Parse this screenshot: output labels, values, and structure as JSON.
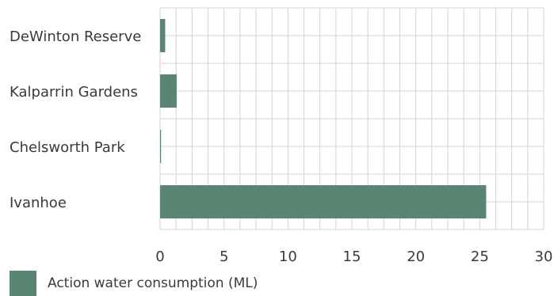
{
  "chart_data": {
    "type": "bar",
    "orientation": "horizontal",
    "categories": [
      "DeWinton Reserve",
      "Kalparrin Gardens",
      "Chelsworth Park",
      "Ivanhoe"
    ],
    "series": [
      {
        "name": "Action water consumption (ML)",
        "values": [
          0.4,
          1.3,
          0.05,
          25.5
        ]
      }
    ],
    "xlim": [
      0,
      30
    ],
    "x_ticks": [
      0,
      5,
      10,
      15,
      20,
      25,
      30
    ],
    "x_tick_labels": [
      "0",
      "5",
      "10",
      "15",
      "20",
      "25",
      "30"
    ],
    "grid": true,
    "legend_position": "bottom-left",
    "bar_color": "#5a8573"
  }
}
